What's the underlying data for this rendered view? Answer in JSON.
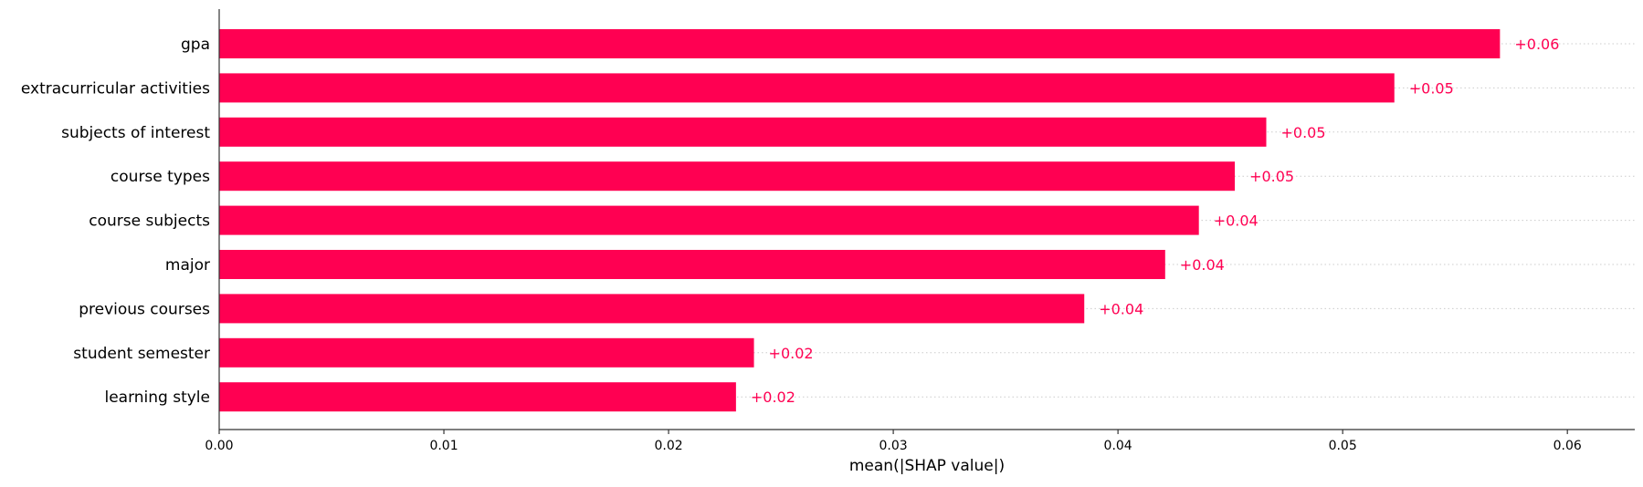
{
  "chart_data": {
    "type": "bar",
    "orientation": "horizontal",
    "categories": [
      "gpa",
      "extracurricular activities",
      "subjects of interest",
      "course types",
      "course subjects",
      "major",
      "previous courses",
      "student semester",
      "learning style"
    ],
    "values": [
      0.057,
      0.0523,
      0.0466,
      0.0452,
      0.0436,
      0.0421,
      0.0385,
      0.0238,
      0.023
    ],
    "value_labels": [
      "+0.06",
      "+0.05",
      "+0.05",
      "+0.05",
      "+0.04",
      "+0.04",
      "+0.04",
      "+0.02",
      "+0.02"
    ],
    "xlabel": "mean(|SHAP value|)",
    "ylabel": "",
    "title": "",
    "xlim": [
      0.0,
      0.063
    ],
    "xticks": [
      0.0,
      0.01,
      0.02,
      0.03,
      0.04,
      0.05,
      0.06
    ],
    "xtick_labels": [
      "0.00",
      "0.01",
      "0.02",
      "0.03",
      "0.04",
      "0.05",
      "0.06"
    ],
    "grid": "dotted guide lines per bar",
    "legend": "none",
    "colors": {
      "bar": "#ff0052",
      "value_label": "#ff0052",
      "guide": "#cccccc",
      "axis": "#333333",
      "text": "#000000"
    }
  }
}
